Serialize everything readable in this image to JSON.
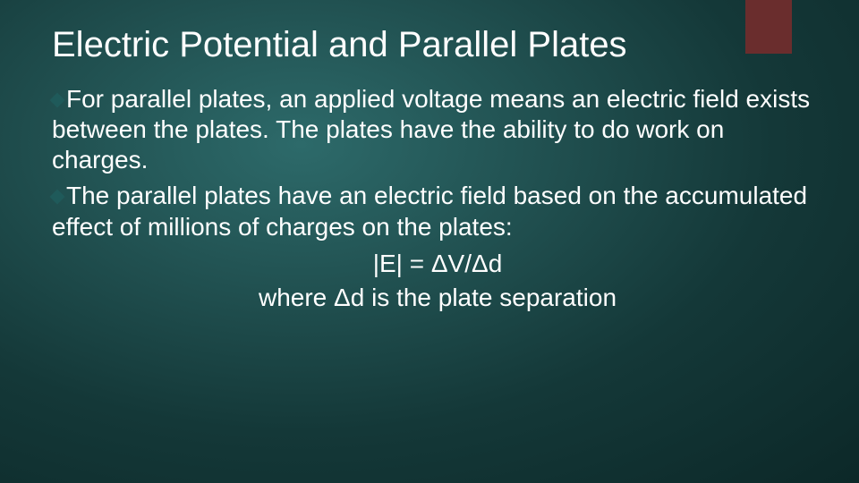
{
  "slide": {
    "title": "Electric Potential and Parallel Plates",
    "accent_color": "#6a2d2d",
    "bullet_color": "#1f5a5a",
    "bullets": [
      "For parallel plates, an applied voltage means an electric field exists between the plates. The plates have the ability to do work on charges.",
      "The parallel plates have an electric field based on the accumulated effect of millions of charges on the plates:"
    ],
    "equation_main": "|E| = ΔV/Δd",
    "equation_note": "where Δd is the plate separation"
  }
}
